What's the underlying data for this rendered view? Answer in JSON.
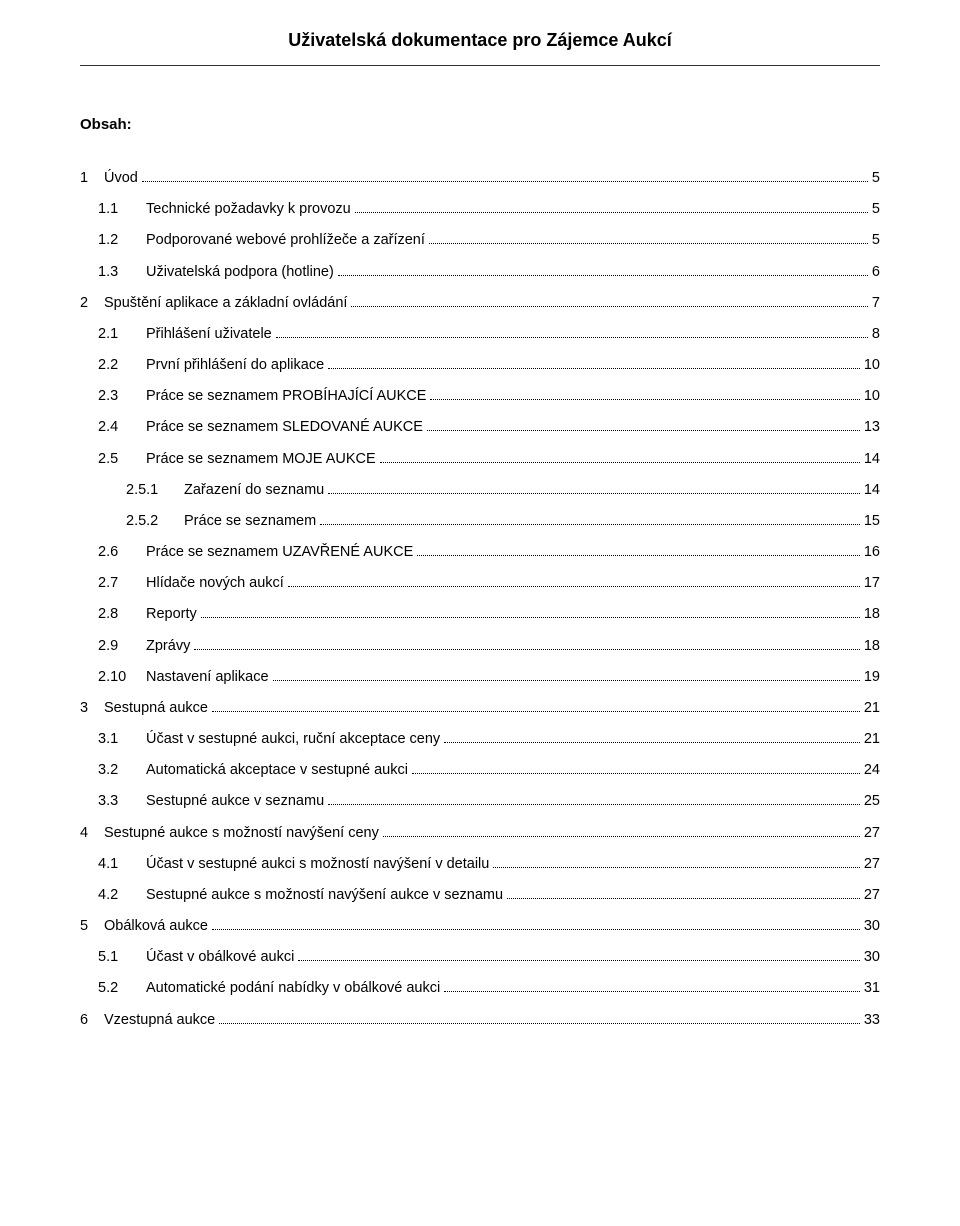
{
  "header": {
    "title": "Uživatelská dokumentace pro Zájemce Aukcí"
  },
  "obsah_label": "Obsah:",
  "toc": [
    {
      "level": 0,
      "num": "1",
      "title": "Úvod",
      "page": "5"
    },
    {
      "level": 1,
      "num": "1.1",
      "title": "Technické požadavky k provozu",
      "page": "5"
    },
    {
      "level": 1,
      "num": "1.2",
      "title": "Podporované webové prohlížeče a zařízení",
      "page": "5"
    },
    {
      "level": 1,
      "num": "1.3",
      "title": "Uživatelská podpora (hotline)",
      "page": "6"
    },
    {
      "level": 0,
      "num": "2",
      "title": "Spuštění aplikace a základní ovládání",
      "page": "7"
    },
    {
      "level": 1,
      "num": "2.1",
      "title": "Přihlášení uživatele",
      "page": "8"
    },
    {
      "level": 1,
      "num": "2.2",
      "title": "První přihlášení do aplikace",
      "page": "10"
    },
    {
      "level": 1,
      "num": "2.3",
      "title": "Práce se seznamem PROBÍHAJÍCÍ AUKCE",
      "page": "10"
    },
    {
      "level": 1,
      "num": "2.4",
      "title": "Práce se seznamem SLEDOVANÉ AUKCE",
      "page": "13"
    },
    {
      "level": 1,
      "num": "2.5",
      "title": "Práce se seznamem MOJE AUKCE",
      "page": "14"
    },
    {
      "level": 2,
      "num": "2.5.1",
      "title": "Zařazení do seznamu",
      "page": "14"
    },
    {
      "level": 2,
      "num": "2.5.2",
      "title": "Práce se seznamem",
      "page": "15"
    },
    {
      "level": 1,
      "num": "2.6",
      "title": "Práce se seznamem UZAVŘENÉ AUKCE",
      "page": "16"
    },
    {
      "level": 1,
      "num": "2.7",
      "title": "Hlídače nových aukcí",
      "page": "17"
    },
    {
      "level": 1,
      "num": "2.8",
      "title": "Reporty",
      "page": "18"
    },
    {
      "level": 1,
      "num": "2.9",
      "title": "Zprávy",
      "page": "18"
    },
    {
      "level": 1,
      "num": "2.10",
      "title": "Nastavení aplikace",
      "page": "19"
    },
    {
      "level": 0,
      "num": "3",
      "title": "Sestupná aukce",
      "page": "21"
    },
    {
      "level": 1,
      "num": "3.1",
      "title": "Účast v sestupné aukci, ruční akceptace ceny",
      "page": "21"
    },
    {
      "level": 1,
      "num": "3.2",
      "title": "Automatická akceptace v sestupné aukci",
      "page": "24"
    },
    {
      "level": 1,
      "num": "3.3",
      "title": "Sestupné aukce v seznamu",
      "page": "25"
    },
    {
      "level": 0,
      "num": "4",
      "title": "Sestupné aukce s možností navýšení ceny",
      "page": "27"
    },
    {
      "level": 1,
      "num": "4.1",
      "title": "Účast v sestupné aukci s možností navýšení v detailu",
      "page": "27"
    },
    {
      "level": 1,
      "num": "4.2",
      "title": "Sestupné aukce s možností navýšení aukce v seznamu",
      "page": "27"
    },
    {
      "level": 0,
      "num": "5",
      "title": "Obálková aukce",
      "page": "30"
    },
    {
      "level": 1,
      "num": "5.1",
      "title": "Účast v obálkové aukci",
      "page": "30"
    },
    {
      "level": 1,
      "num": "5.2",
      "title": "Automatické podání nabídky v obálkové aukci",
      "page": "31"
    },
    {
      "level": 0,
      "num": "6",
      "title": "Vzestupná aukce",
      "page": "33"
    }
  ]
}
